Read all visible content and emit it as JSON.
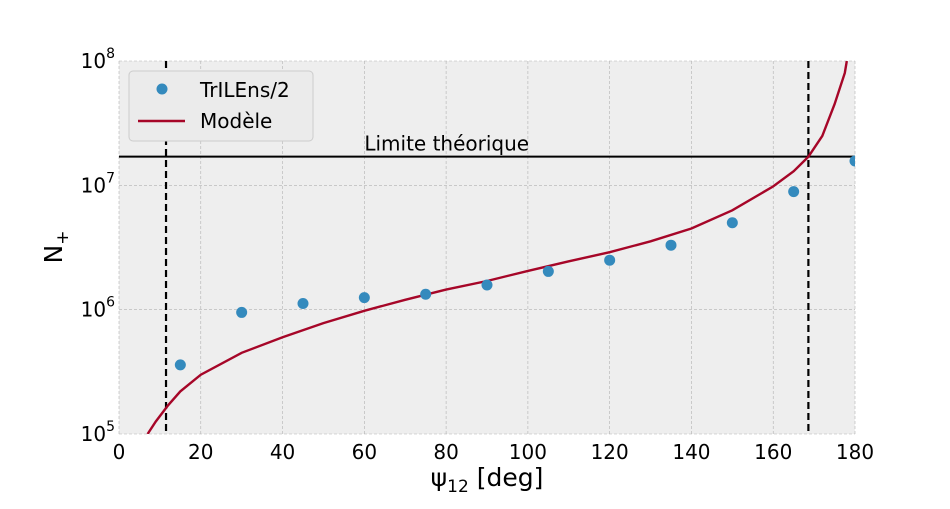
{
  "chart_data": {
    "type": "scatter",
    "xlabel": "ψ12 [deg]",
    "ylabel": "N+",
    "xlim": [
      0,
      180
    ],
    "ylim": [
      100000,
      100000000
    ],
    "yscale": "log",
    "grid": true,
    "legend_position": "upper-left",
    "x_ticks": [
      0,
      20,
      40,
      60,
      80,
      100,
      120,
      140,
      160,
      180
    ],
    "y_ticks": [
      {
        "value": 100000,
        "base": "10",
        "exp": "5"
      },
      {
        "value": 1000000,
        "base": "10",
        "exp": "6"
      },
      {
        "value": 10000000,
        "base": "10",
        "exp": "7"
      },
      {
        "value": 100000000,
        "base": "10",
        "exp": "8"
      }
    ],
    "series": [
      {
        "name": "TrILEns/2",
        "kind": "scatter",
        "color": "#348abd",
        "points": [
          {
            "x": 15,
            "y": 360000
          },
          {
            "x": 30,
            "y": 950000
          },
          {
            "x": 45,
            "y": 1120000
          },
          {
            "x": 60,
            "y": 1250000
          },
          {
            "x": 75,
            "y": 1330000
          },
          {
            "x": 90,
            "y": 1580000
          },
          {
            "x": 105,
            "y": 2030000
          },
          {
            "x": 120,
            "y": 2500000
          },
          {
            "x": 135,
            "y": 3300000
          },
          {
            "x": 150,
            "y": 5000000
          },
          {
            "x": 165,
            "y": 8900000
          },
          {
            "x": 180,
            "y": 15700000
          }
        ]
      },
      {
        "name": "Modèle",
        "kind": "line",
        "color": "#a60628",
        "points": [
          {
            "x": 7,
            "y": 100000
          },
          {
            "x": 9,
            "y": 126000
          },
          {
            "x": 12,
            "y": 170000
          },
          {
            "x": 15,
            "y": 220000
          },
          {
            "x": 20,
            "y": 300000
          },
          {
            "x": 30,
            "y": 450000
          },
          {
            "x": 40,
            "y": 600000
          },
          {
            "x": 50,
            "y": 780000
          },
          {
            "x": 60,
            "y": 980000
          },
          {
            "x": 70,
            "y": 1200000
          },
          {
            "x": 80,
            "y": 1450000
          },
          {
            "x": 90,
            "y": 1700000
          },
          {
            "x": 100,
            "y": 2050000
          },
          {
            "x": 110,
            "y": 2450000
          },
          {
            "x": 120,
            "y": 2900000
          },
          {
            "x": 130,
            "y": 3550000
          },
          {
            "x": 140,
            "y": 4500000
          },
          {
            "x": 150,
            "y": 6300000
          },
          {
            "x": 160,
            "y": 9800000
          },
          {
            "x": 165,
            "y": 13000000
          },
          {
            "x": 168.6,
            "y": 17000000
          },
          {
            "x": 172,
            "y": 25000000
          },
          {
            "x": 175,
            "y": 45000000
          },
          {
            "x": 177.5,
            "y": 80000000
          },
          {
            "x": 178,
            "y": 100000000
          }
        ]
      }
    ],
    "hline": {
      "y": 17000000,
      "label": "Limite théorique",
      "label_x": 60,
      "color": "#000000"
    },
    "vlines": [
      {
        "x": 11.5,
        "color": "#000000",
        "style": "dashed"
      },
      {
        "x": 168.6,
        "color": "#000000",
        "style": "dashed"
      }
    ]
  }
}
